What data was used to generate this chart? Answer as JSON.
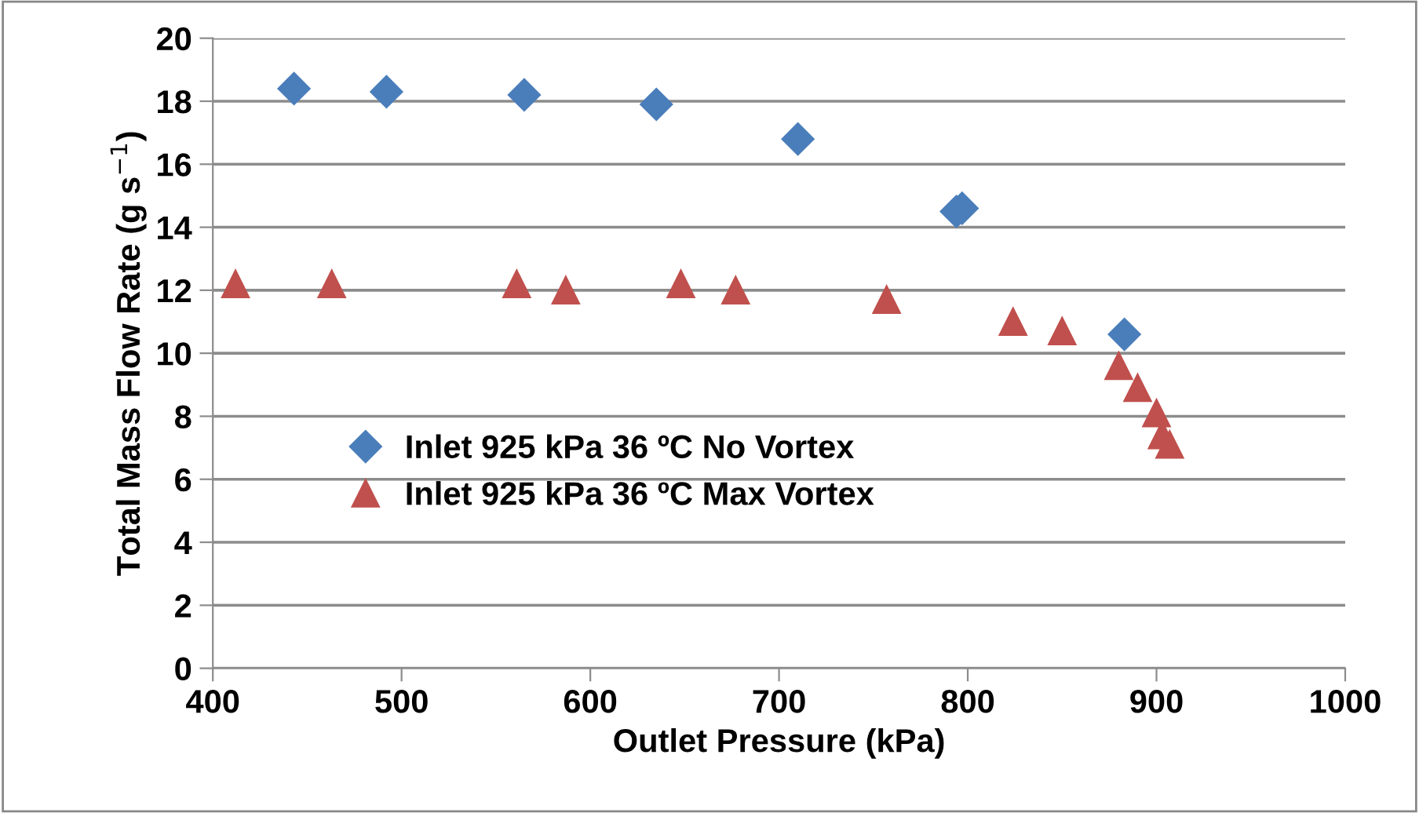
{
  "chart_data": {
    "type": "scatter",
    "xlabel": "Outlet Pressure (kPa)",
    "ylabel": "Total Mass Flow Rate (g s$^{−1}$)",
    "xlim": [
      400,
      1000
    ],
    "xticks": [
      400,
      500,
      600,
      700,
      800,
      900,
      1000
    ],
    "ylim": [
      0,
      20
    ],
    "yticks": [
      0,
      2,
      4,
      6,
      8,
      10,
      12,
      14,
      16,
      18,
      20
    ],
    "grid": "y",
    "legend": "center left",
    "series": [
      {
        "name": "Inlet 925 kPa 36 ºC No Vortex",
        "color": "#4a7ebb",
        "marker": "diamond",
        "x": [
          443,
          492,
          565,
          635,
          710,
          794,
          797,
          883
        ],
        "values": [
          18.4,
          18.3,
          18.2,
          17.9,
          16.8,
          14.5,
          14.6,
          10.6
        ]
      },
      {
        "name": "Inlet 925 kPa 36 ºC Max Vortex",
        "color": "#c0504d",
        "marker": "triangle",
        "x": [
          412,
          463,
          561,
          587,
          648,
          677,
          757,
          824,
          850,
          880,
          890,
          900,
          903,
          907
        ],
        "values": [
          12.2,
          12.2,
          12.2,
          12.0,
          12.2,
          12.0,
          11.7,
          11.0,
          10.7,
          9.6,
          8.9,
          8.1,
          7.4,
          7.1
        ]
      }
    ]
  }
}
